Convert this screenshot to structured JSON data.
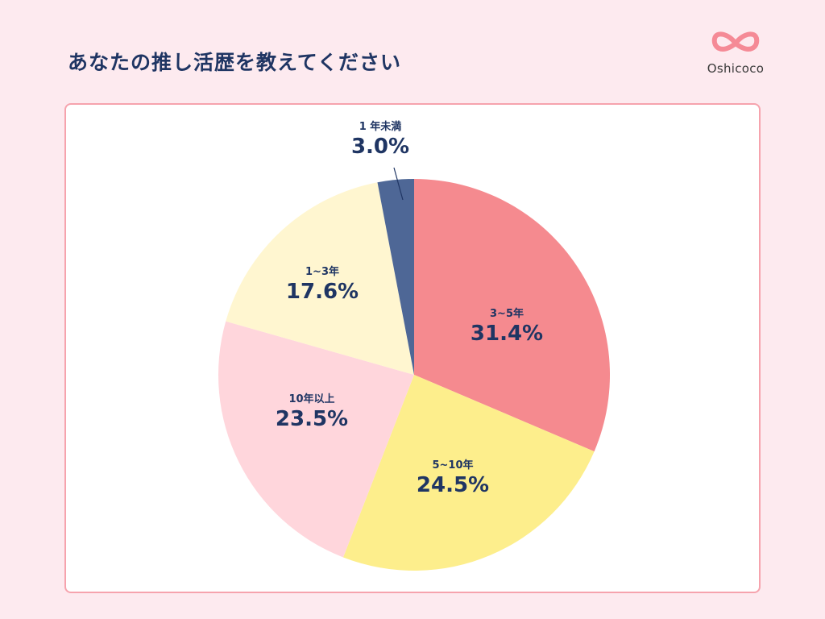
{
  "header": {
    "title": "あなたの推し活歴を教えてください"
  },
  "logo": {
    "icon": "infinity-heart-logo-icon",
    "text": "Oshicoco"
  },
  "colors": {
    "background": "#fdeaef",
    "card_border": "#f6a3ad",
    "text": "#1f3563"
  },
  "chart_data": {
    "type": "pie",
    "title": "あなたの推し活歴を教えてください",
    "start_angle": "12 o'clock, clockwise",
    "categories": [
      "3~5年",
      "5~10年",
      "10年以上",
      "1~3年",
      "1年未満"
    ],
    "values": [
      31.4,
      24.5,
      23.5,
      17.6,
      3.0
    ],
    "labels": [
      "31.4%",
      "24.5%",
      "23.5%",
      "17.6%",
      "3.0%"
    ],
    "colors": [
      "#f58a8f",
      "#fdee8c",
      "#ffd6dc",
      "#fff6d0",
      "#4e6796"
    ],
    "legend": "none (labels on slices)"
  },
  "slices": [
    {
      "category": "3~5年",
      "label": "31.4%"
    },
    {
      "category": "5~10年",
      "label": "24.5%"
    },
    {
      "category": "10年以上",
      "label": "23.5%"
    },
    {
      "category": "1~3年",
      "label": "17.6%"
    },
    {
      "category": "1 年未満",
      "label": "3.0%"
    }
  ]
}
